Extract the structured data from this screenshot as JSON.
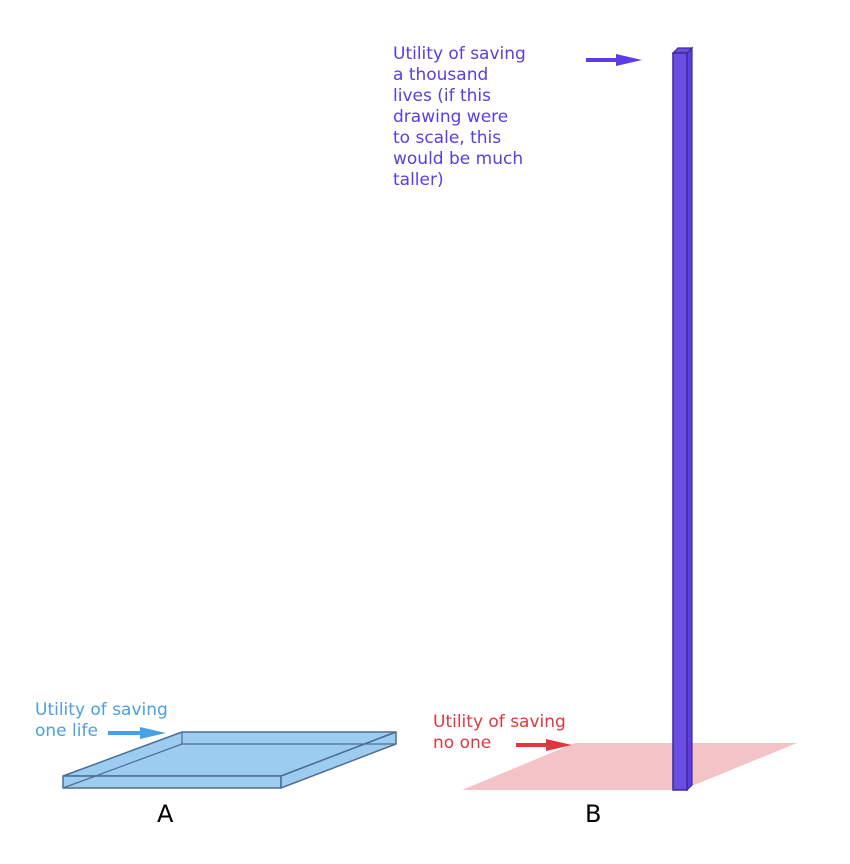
{
  "colors": {
    "one_life": "#4a9fe6",
    "no_one": "#e0373f",
    "thousand_lives": "#5b3ce6",
    "slab_fill": "#8cc3ef",
    "slab_edge": "#4d6f90",
    "plane_fill": "#f4c3c7",
    "pillar_fill": "#6a4ee0",
    "pillar_edge": "#3c2a9a"
  },
  "labels": {
    "thousand_lives": [
      "Utility of saving",
      "a thousand",
      "lives (if this",
      "drawing were",
      "to scale, this",
      "would be much",
      "taller)"
    ],
    "one_life": [
      "Utility of saving",
      "one life"
    ],
    "no_one": [
      "Utility of saving",
      "no one"
    ]
  },
  "panels": {
    "a": "A",
    "b": "B"
  },
  "icons": [
    "arrow-right-icon"
  ]
}
